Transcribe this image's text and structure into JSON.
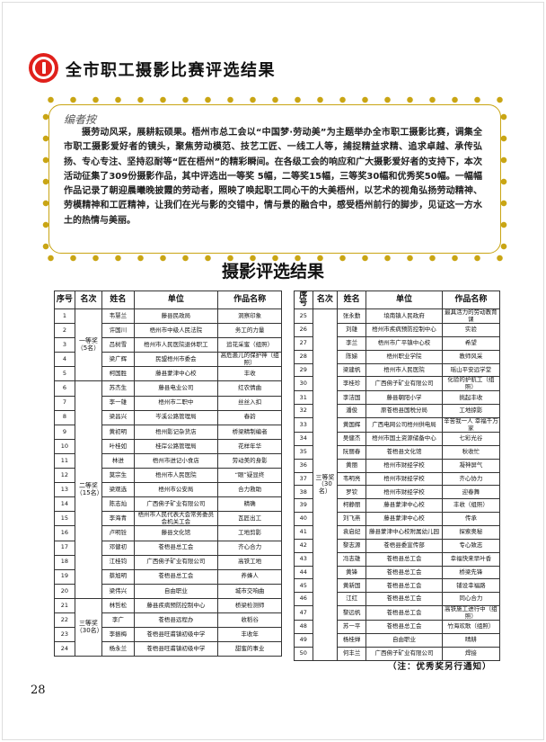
{
  "header": {
    "title": "全市职工摄影比赛评选结果",
    "logo": "trade-union-logo"
  },
  "intro": {
    "label": "编者按",
    "text": "摄劳动风采，展耕耘硕果。梧州市总工会以“中国梦·劳动美”为主题举办全市职工摄影比赛，调集全市职工摄影爱好者的镜头，聚焦劳动模范、技艺工匠、一线工人等，捕捉精益求精、追求卓越、承传弘扬、专心专注、坚持忍耐等“匠在梧州”的精彩瞬间。在各级工会的响应和广大摄影爱好者的支持下，本次活动征集了309份摄影作品，其中评选出一等奖 5幅，二等奖15幅，三等奖30幅和优秀奖50幅。一幅幅作品记录了朝迎晨曦晚披霞的劳动者，照映了唤起职工同心干的大美梧州，以艺术的视角弘扬劳动精神、劳模精神和工匠精神，让我们在光与影的交错中，情与景的融合中，感受梧州前行的脚步，见证这一方水土的热情与美丽。"
  },
  "results_heading": "摄影评选结果",
  "columns": [
    "序号",
    "名次",
    "姓名",
    "单位",
    "作品名称"
  ],
  "tables": {
    "left": [
      {
        "rank": "一等奖\n（5名）",
        "rows": [
          [
            "1",
            "韦慧兰",
            "藤县民政局",
            "洞察印象"
          ],
          [
            "2",
            "许国川",
            "梧州市中级人民法院",
            "务工的力量"
          ],
          [
            "3",
            "吕树雪",
            "梧州市人民医院退休职工",
            "追花采蜜（组照）"
          ],
          [
            "4",
            "梁广辉",
            "民盟梧州市委会",
            "高危患儿的保护神（组照）"
          ],
          [
            "5",
            "柯国胜",
            "藤县蒙津中心校",
            "丰收"
          ]
        ]
      },
      {
        "rank": "二等奖\n（15名）",
        "rows": [
          [
            "6",
            "苏杰生",
            "藤县电业公司",
            "红农情曲"
          ],
          [
            "7",
            "李一雄",
            "梧州市二职中",
            "丝丝入扣"
          ],
          [
            "8",
            "梁昌兴",
            "岑溪公路管理局",
            "春韵"
          ],
          [
            "9",
            "黄初明",
            "梧州影记杂货店",
            "桥梁精制编者"
          ],
          [
            "10",
            "叶桂如",
            "桂岸公路管理局",
            "花样年华"
          ],
          [
            "11",
            "林进",
            "梧州市进记小食店",
            "劳动美的身影"
          ],
          [
            "12",
            "莫宗生",
            "梧州市人民医院",
            "“眼”疑显终"
          ],
          [
            "13",
            "梁观选",
            "梧州市公安局",
            "合力救助"
          ],
          [
            "14",
            "陈志灿",
            "广西佛子矿业有限公司",
            "精确"
          ],
          [
            "15",
            "李海青",
            "梧州市人民代表大会常务委员会机关工会",
            "瓦匠出工"
          ],
          [
            "16",
            "卢明铨",
            "藤县文化馆",
            "工地剪影"
          ],
          [
            "17",
            "邓健初",
            "苍梧县总工会",
            "齐心合力"
          ],
          [
            "18",
            "江桂钧",
            "广西佛子矿业有限公司",
            "高铁工地"
          ],
          [
            "19",
            "蔡旭明",
            "苍梧县总工会",
            "养蜂人"
          ],
          [
            "20",
            "梁伟兴",
            "自由职业",
            "城市交响曲"
          ]
        ]
      },
      {
        "rank": "三等奖\n（30名）",
        "rows": [
          [
            "21",
            "林哲松",
            "藤县疾病预防控制中心",
            "桥梁检测师"
          ],
          [
            "22",
            "李广",
            "苍梧县远程办",
            "收稻谷"
          ],
          [
            "23",
            "李振梅",
            "苍梧县旺甫镇初级中学",
            "丰收年"
          ],
          [
            "24",
            "杨永兰",
            "苍梧县旺甫镇初级中学",
            "甜蜜的事业"
          ]
        ]
      }
    ],
    "right": [
      {
        "rank": "三等奖\n（30名）",
        "rows": [
          [
            "25",
            "张永勤",
            "埌南镇人民政府",
            "最具活力的劳动教育课"
          ],
          [
            "26",
            "刘雄",
            "梧州市疾病预防控制中心",
            "实验"
          ],
          [
            "27",
            "李兰",
            "梧州市广平镇中心校",
            "希望"
          ],
          [
            "28",
            "陈娣",
            "梧州职业学院",
            "教师风采"
          ],
          [
            "29",
            "梁建帆",
            "梧州市人民医院",
            "瑶山平安远学堂"
          ],
          [
            "30",
            "李桂珍",
            "广西佛子矿业有限公司",
            "化验的护航工（组照）"
          ],
          [
            "31",
            "李洁国",
            "藤县朝阳小学",
            "挑起丰收"
          ],
          [
            "32",
            "潘俊",
            "原苍梧县国税分局",
            "工地掠影"
          ],
          [
            "33",
            "黄国辉",
            "广西电网公司梧州供电局",
            "辛苦我一人 幸福千万家"
          ],
          [
            "34",
            "吴健杰",
            "梧州市国土资源储备中心",
            "七彩光谷"
          ],
          [
            "35",
            "阮丽春",
            "苍梧县文化馆",
            "秋收忙"
          ],
          [
            "36",
            "黄丽",
            "梧州市财经学校",
            "凝神屏气"
          ],
          [
            "37",
            "韦明亮",
            "梧州市财经学校",
            "齐心协力"
          ],
          [
            "38",
            "罗钦",
            "梧州市财经学校",
            "迎春舞"
          ],
          [
            "39",
            "柯静丽",
            "藤县蒙津中心校",
            "丰收（组照）"
          ],
          [
            "40",
            "刘飞燕",
            "藤县蒙津中心校",
            "传承"
          ],
          [
            "41",
            "袁启妃",
            "藤县蒙津中心校附属幼儿园",
            "探索奥秘"
          ],
          [
            "42",
            "黎志源",
            "苍梧县委宣传部",
            "专心致志"
          ],
          [
            "43",
            "冯志雄",
            "苍梧县总工会",
            "幸福快来早叶香"
          ],
          [
            "44",
            "黄锋",
            "苍梧县总工会",
            "桥梁先锋"
          ],
          [
            "45",
            "黄新国",
            "苍梧县总工会",
            "铺设幸福路"
          ],
          [
            "46",
            "江红",
            "苍梧县总工会",
            "同心合力"
          ],
          [
            "47",
            "黎远帆",
            "苍梧县总工会",
            "高铁施工进行中（组照）"
          ],
          [
            "48",
            "苏一平",
            "苍梧县总工会",
            "竹海欢歌（组照）"
          ],
          [
            "49",
            "杨桂婵",
            "自由职业",
            "晴耕"
          ],
          [
            "50",
            "何丰兰",
            "广西佛子矿业有限公司",
            "焊接"
          ]
        ]
      }
    ]
  },
  "note": "（注：优秀奖另行通知）",
  "page_number": "28",
  "colors": {
    "logo": "#e0201b",
    "frame": "#c9a514"
  }
}
